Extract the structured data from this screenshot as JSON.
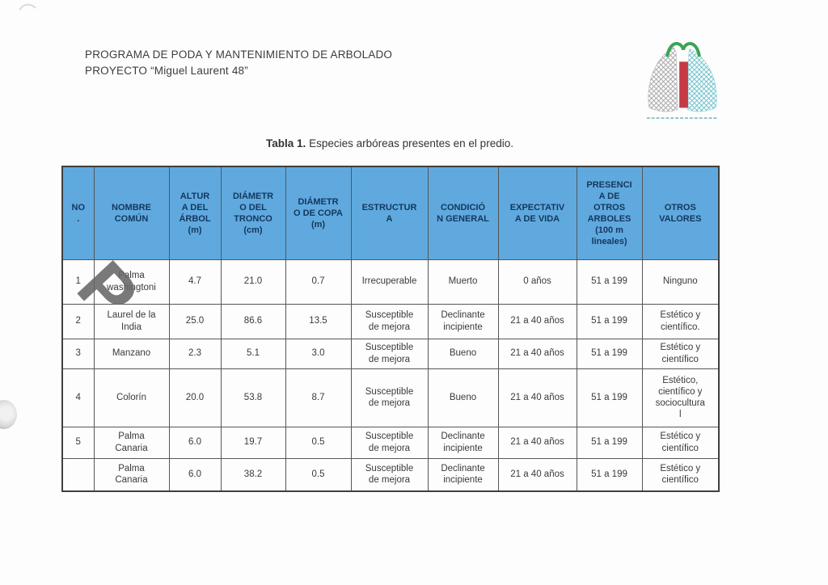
{
  "page": {
    "header_line1": "PROGRAMA DE PODA Y MANTENIMIENTO DE ARBOLADO",
    "header_line2": "PROYECTO “Miguel Laurent 48”",
    "table_title_bold": "Tabla 1.",
    "table_title_rest": " Especies arbóreas presentes en el predio."
  },
  "watermark": {
    "glyph": "P"
  },
  "icons": {
    "logo": "tree-logo"
  },
  "colors": {
    "header_fill": "#5FA9DF",
    "header_text": "#14375c",
    "body_text": "#3a3a3a",
    "logo_red": "#c53b44",
    "logo_green": "#3aa357",
    "logo_teal": "#57b8c4",
    "logo_grey": "#9a9a9a"
  },
  "table": {
    "headers": [
      "NO\n.",
      "NOMBRE\nCOMÚN",
      "ALTUR\nA DEL\nÁRBOL\n(m)",
      "DIÁMETR\nO DEL\nTRONCO\n(cm)",
      "DIÁMETR\nO DE COPA\n(m)",
      "ESTRUCTUR\nA",
      "CONDICIÓ\nN GENERAL",
      "EXPECTATIV\nA DE VIDA",
      "PRESENCI\nA DE\nOTROS\nARBOLES\n(100 m\nlineales)",
      "OTROS\nVALORES"
    ],
    "rows": [
      [
        "1",
        "Palma\nwashingtoni",
        "4.7",
        "21.0",
        "0.7",
        "Irrecuperable",
        "Muerto",
        "0 años",
        "51 a 199",
        "Ninguno"
      ],
      [
        "2",
        "Laurel de la\nIndia",
        "25.0",
        "86.6",
        "13.5",
        "Susceptible\nde mejora",
        "Declinante\nincipiente",
        "21 a 40 años",
        "51 a 199",
        "Estético y\ncientífico."
      ],
      [
        "3",
        "Manzano",
        "2.3",
        "5.1",
        "3.0",
        "Susceptible\nde mejora",
        "Bueno",
        "21 a 40 años",
        "51 a 199",
        "Estético y\ncientífico"
      ],
      [
        "4",
        "Colorín",
        "20.0",
        "53.8",
        "8.7",
        "Susceptible\nde mejora",
        "Bueno",
        "21 a 40 años",
        "51 a 199",
        "Estético,\ncientífico y\nsociocultura\nl"
      ],
      [
        "5",
        "Palma\nCanaria",
        "6.0",
        "19.7",
        "0.5",
        "Susceptible\nde mejora",
        "Declinante\nincipiente",
        "21 a 40 años",
        "51 a 199",
        "Estético y\ncientífico"
      ],
      [
        "",
        "Palma\nCanaria",
        "6.0",
        "38.2",
        "0.5",
        "Susceptible\nde mejora",
        "Declinante\nincipiente",
        "21 a 40 años",
        "51 a 199",
        "Estético y\ncientífico"
      ]
    ]
  }
}
